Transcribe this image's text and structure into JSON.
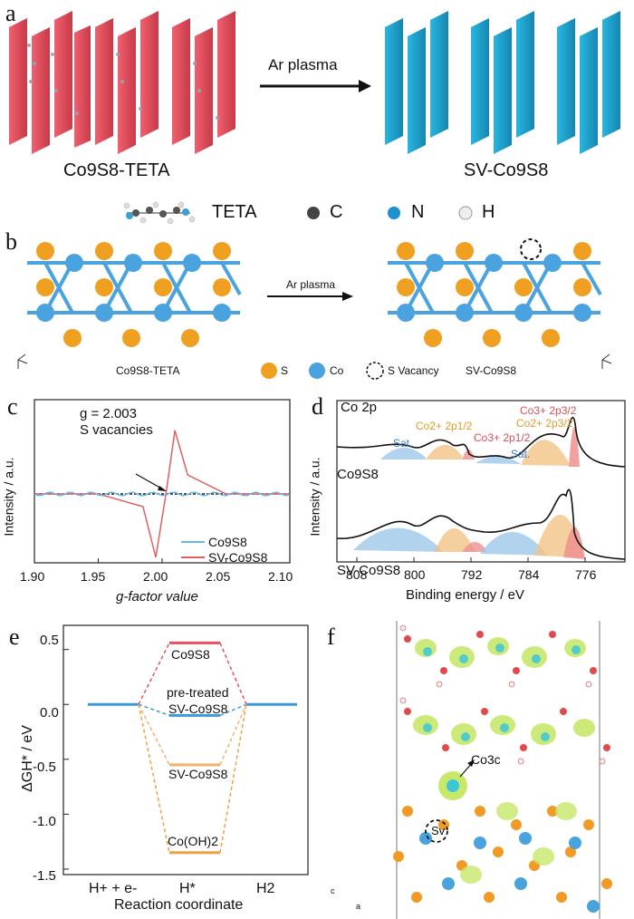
{
  "panels": {
    "a": {
      "label": "a",
      "arrow_label": "Ar plasma",
      "left_name": "Co9S8-TETA",
      "right_name": "SV-Co9S8",
      "legend": [
        "TETA",
        "C",
        "N",
        "H"
      ],
      "colors": {
        "sheet_left": "#e4505f",
        "sheet_right": "#1ea3cf"
      }
    },
    "b": {
      "label": "b",
      "arrow_label": "Ar plasma",
      "left_name": "Co9S8-TETA",
      "right_name": "SV-Co9S8",
      "legend": [
        "S",
        "Co",
        "S Vacancy"
      ],
      "colors": {
        "S": "#f0a020",
        "Co": "#4aa3df"
      }
    },
    "c": {
      "label": "c",
      "annotation_line1": "g = 2.003",
      "annotation_line2": "S vacancies",
      "ylabel": "Intensity / a.u.",
      "xlabel": "g-factor value",
      "xticks": [
        "1.90",
        "1.95",
        "2.00",
        "2.05",
        "2.10"
      ],
      "legend": [
        "Co9S8",
        "SV-Co9S8"
      ]
    },
    "d": {
      "label": "d",
      "title": "Co 2p",
      "ylabel": "Intensity / a.u.",
      "xlabel": "Binding energy / eV",
      "xticks": [
        "808",
        "800",
        "792",
        "784",
        "776"
      ],
      "top_sample": "Co9S8",
      "bottom_sample": "SV-Co9S8",
      "peak_labels": [
        "Sat.",
        "Co2+ 2p1/2",
        "Co3+ 2p1/2",
        "Sat.",
        "Co2+ 2p3/2",
        "Co3+ 2p3/2"
      ]
    },
    "e": {
      "label": "e",
      "ylabel": "ΔGH* / eV",
      "xlabel": "Reaction coordinate",
      "yticks": [
        "0.5",
        "0.0",
        "-0.5",
        "-1.0",
        "-1.5"
      ],
      "xticks": [
        "H+ + e-",
        "H*",
        "H2"
      ],
      "levels": [
        "Co9S8",
        "pre-treated",
        "SV-Co9S8",
        "SV-Co9S8",
        "Co(OH)2"
      ]
    },
    "f": {
      "label": "f",
      "site_label": "Co3c",
      "vacancy_label": "Sv",
      "axes": [
        "c",
        "a"
      ]
    }
  },
  "chart_data": [
    {
      "type": "line",
      "panel": "c",
      "xlabel": "g-factor value",
      "ylabel": "Intensity / a.u.",
      "xlim": [
        1.9,
        2.1
      ],
      "series": [
        {
          "name": "Co9S8",
          "x": [
            1.9,
            1.95,
            2.0,
            2.05,
            2.1
          ],
          "y": [
            0,
            0,
            0,
            0,
            0
          ]
        },
        {
          "name": "SV-Co9S8",
          "x": [
            1.9,
            1.95,
            1.985,
            1.995,
            2.003,
            2.01,
            2.02,
            2.05,
            2.1
          ],
          "y": [
            0,
            0,
            -0.2,
            -1.0,
            0,
            1.0,
            0.3,
            0,
            0
          ]
        }
      ],
      "annotation": "g = 2.003 S vacancies"
    },
    {
      "type": "line",
      "panel": "d",
      "xlabel": "Binding energy / eV",
      "ylabel": "Intensity / a.u.",
      "xlim": [
        811,
        772
      ],
      "series": [
        {
          "name": "Co9S8"
        },
        {
          "name": "SV-Co9S8"
        }
      ]
    },
    {
      "type": "line",
      "panel": "e",
      "xlabel": "Reaction coordinate",
      "ylabel": "ΔGH* / eV",
      "categories": [
        "H+ + e-",
        "H*",
        "H2"
      ],
      "ylim": [
        -1.5,
        0.7
      ],
      "series": [
        {
          "name": "Co9S8",
          "values": [
            0,
            0.56,
            0
          ]
        },
        {
          "name": "pre-treated SV-Co9S8",
          "values": [
            0,
            -0.1,
            0
          ]
        },
        {
          "name": "SV-Co9S8",
          "values": [
            0,
            -0.55,
            0
          ]
        },
        {
          "name": "Co(OH)2",
          "values": [
            0,
            -1.35,
            0
          ]
        }
      ]
    }
  ]
}
